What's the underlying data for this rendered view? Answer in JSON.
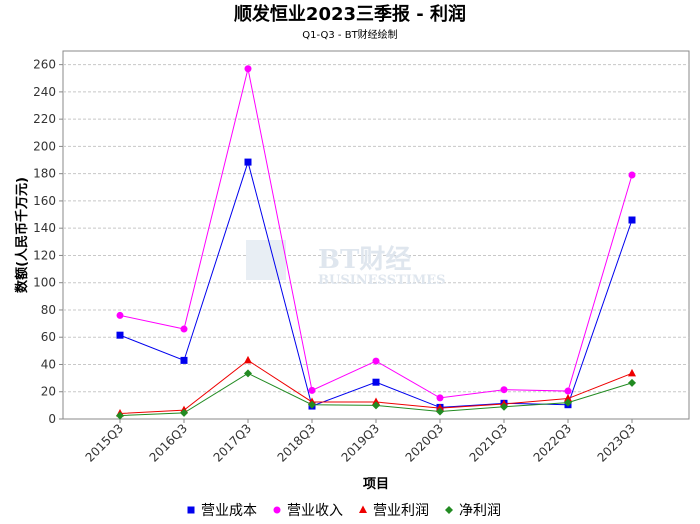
{
  "chart_data": {
    "type": "line",
    "title": "顺发恒业2023三季报 - 利润",
    "subtitle": "Q1-Q3 - BT财经绘制",
    "xlabel": "项目",
    "ylabel": "数额(人民币千万元)",
    "categories": [
      "2015Q3",
      "2016Q3",
      "2017Q3",
      "2018Q3",
      "2019Q3",
      "2020Q3",
      "2021Q3",
      "2022Q3",
      "2023Q3"
    ],
    "ylim": [
      0,
      270
    ],
    "yticks": [
      0,
      20,
      40,
      60,
      80,
      100,
      120,
      140,
      160,
      180,
      200,
      220,
      240,
      260
    ],
    "grid": true,
    "legend_position": "bottom",
    "series": [
      {
        "name": "营业成本",
        "color": "#0000ee",
        "marker": "square",
        "values": [
          61.5,
          43,
          188.5,
          9.5,
          27,
          8.5,
          11.5,
          10.5,
          146
        ]
      },
      {
        "name": "营业收入",
        "color": "#ff00ff",
        "marker": "circle",
        "values": [
          76,
          66,
          257,
          21,
          42.5,
          15.5,
          21.5,
          20.5,
          179
        ]
      },
      {
        "name": "营业利润",
        "color": "#ee0000",
        "marker": "triangle",
        "values": [
          4,
          6.5,
          43,
          12.5,
          12.5,
          8,
          11,
          15,
          33.5
        ]
      },
      {
        "name": "净利润",
        "color": "#228b22",
        "marker": "diamond",
        "values": [
          2.5,
          4.5,
          33.5,
          10.5,
          10,
          5.5,
          9,
          12,
          26.5
        ]
      }
    ]
  },
  "watermark": {
    "main": "BT财经",
    "sub": "BUSINESSTIMES"
  }
}
